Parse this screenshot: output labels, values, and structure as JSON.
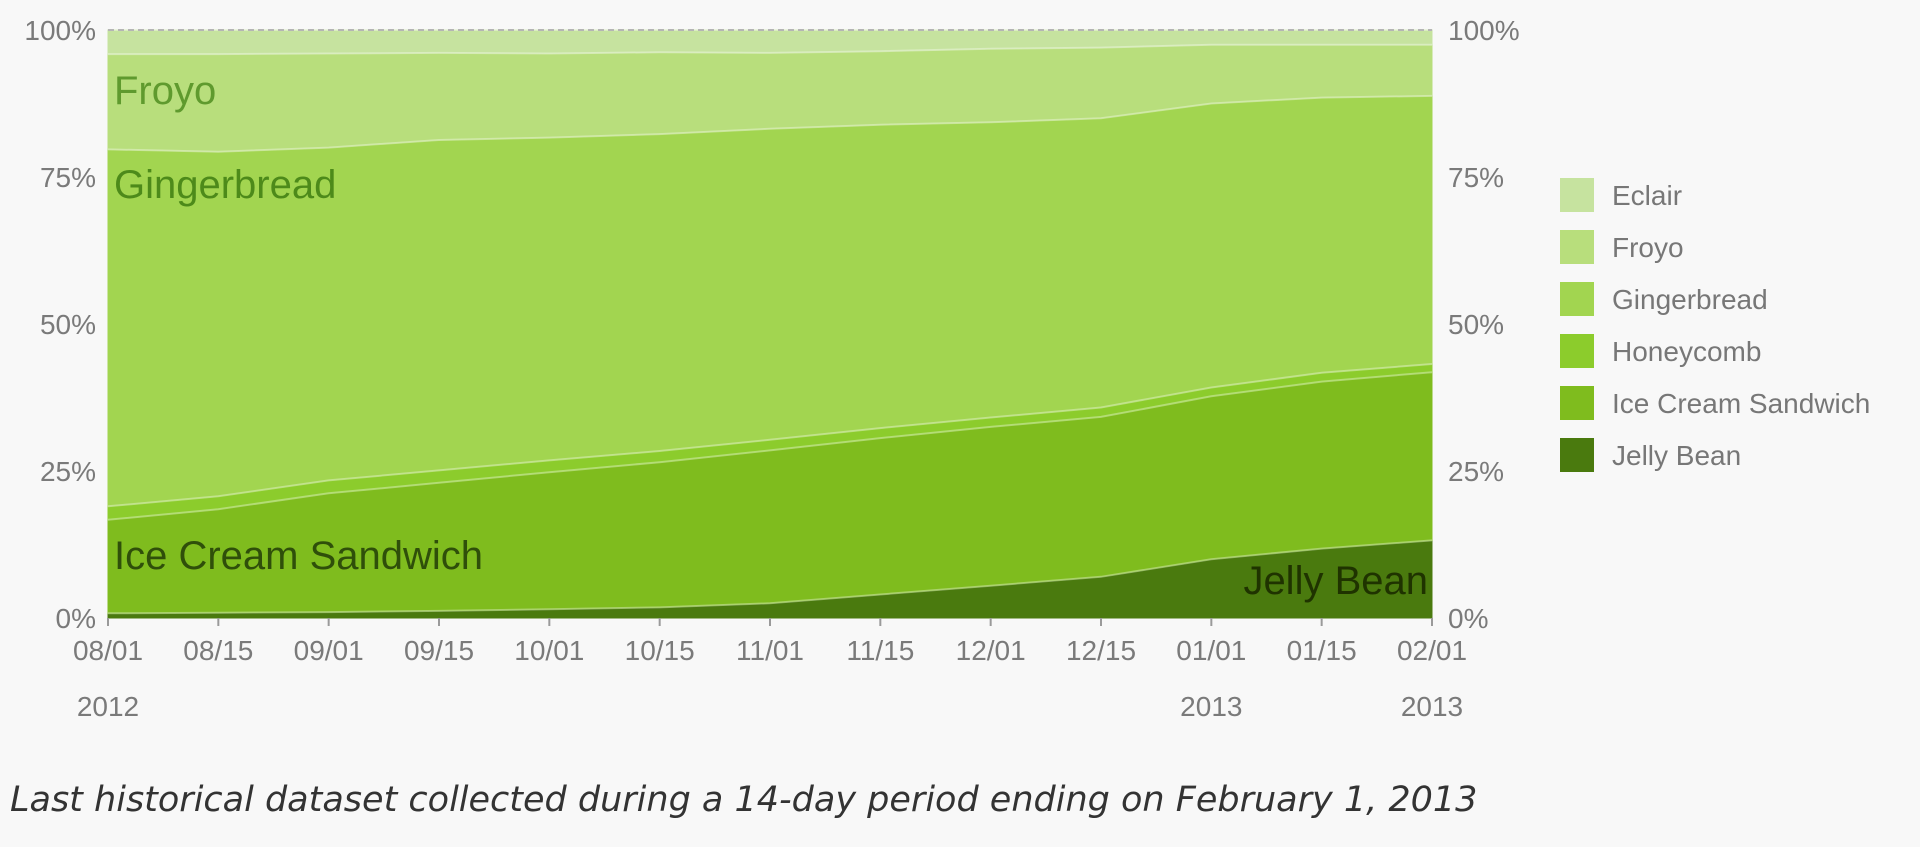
{
  "caption": "Last historical dataset collected during a 14-day period ending on February 1, 2013",
  "chart_data": {
    "type": "area",
    "stacked": true,
    "title": "",
    "xlabel": "",
    "ylabel": "",
    "ylim": [
      0,
      100
    ],
    "y_ticks": [
      "0%",
      "25%",
      "50%",
      "75%",
      "100%"
    ],
    "x": [
      "2012-08-01",
      "2012-08-15",
      "2012-09-01",
      "2012-09-15",
      "2012-10-01",
      "2012-10-15",
      "2012-11-01",
      "2012-11-15",
      "2012-12-01",
      "2012-12-15",
      "2013-01-01",
      "2013-01-15",
      "2013-02-01"
    ],
    "x_tick_labels": [
      "08/01",
      "08/15",
      "09/01",
      "09/15",
      "10/01",
      "10/15",
      "11/01",
      "11/15",
      "12/01",
      "12/15",
      "01/01",
      "01/15",
      "02/01"
    ],
    "x_year_labels": [
      {
        "index": 0,
        "label": "2012"
      },
      {
        "index": 10,
        "label": "2013"
      },
      {
        "index": 12,
        "label": "2013"
      }
    ],
    "series": [
      {
        "name": "Jelly Bean",
        "color": "#4a7a0e",
        "label_color": "#1f3300",
        "values": [
          0.8,
          0.9,
          1.0,
          1.2,
          1.5,
          1.8,
          2.5,
          4.0,
          5.5,
          7.0,
          10.0,
          11.8,
          13.2
        ]
      },
      {
        "name": "Ice Cream Sandwich",
        "color": "#7fbc1e",
        "label_color": "#2f4f0a",
        "values": [
          15.9,
          17.6,
          20.2,
          21.8,
          23.3,
          24.7,
          26.0,
          26.6,
          27.0,
          27.2,
          27.7,
          28.4,
          28.6
        ]
      },
      {
        "name": "Honeycomb",
        "color": "#8ccc2c",
        "label_color": "#3f6b10",
        "values": [
          2.3,
          2.2,
          2.2,
          2.1,
          2.0,
          1.9,
          1.8,
          1.7,
          1.6,
          1.6,
          1.5,
          1.5,
          1.4
        ]
      },
      {
        "name": "Gingerbread",
        "color": "#a2d550",
        "label_color": "#4d8a1a",
        "values": [
          60.7,
          58.6,
          56.6,
          56.2,
          54.9,
          53.9,
          52.9,
          51.6,
          50.2,
          49.2,
          48.3,
          46.8,
          45.6
        ]
      },
      {
        "name": "Froyo",
        "color": "#b8de7c",
        "label_color": "#5f9a2e",
        "values": [
          16.2,
          16.6,
          16.0,
          14.8,
          14.3,
          13.9,
          12.9,
          12.5,
          12.5,
          12.0,
          10.0,
          9.0,
          8.7
        ]
      },
      {
        "name": "Eclair",
        "color": "#c6e39f",
        "label_color": "#6aa23a",
        "values": [
          4.1,
          4.1,
          4.0,
          3.9,
          4.0,
          3.8,
          3.9,
          3.6,
          3.2,
          3.0,
          2.5,
          2.5,
          2.5
        ]
      }
    ],
    "legend_order": [
      "Eclair",
      "Froyo",
      "Gingerbread",
      "Honeycomb",
      "Ice Cream Sandwich",
      "Jelly Bean"
    ],
    "area_labels": [
      {
        "series": "Froyo",
        "text": "Froyo"
      },
      {
        "series": "Gingerbread",
        "text": "Gingerbread"
      },
      {
        "series": "Ice Cream Sandwich",
        "text": "Ice Cream Sandwich"
      },
      {
        "series": "Jelly Bean",
        "text": "Jelly Bean"
      }
    ],
    "legend_position": "right",
    "grid": false
  }
}
